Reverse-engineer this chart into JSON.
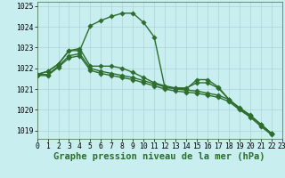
{
  "title": "Graphe pression niveau de la mer (hPa)",
  "background_color": "#c8eef0",
  "grid_color": "#aed4d8",
  "line_color": "#2d6e2d",
  "xlim": [
    0,
    23
  ],
  "ylim": [
    1018.6,
    1025.2
  ],
  "yticks": [
    1019,
    1020,
    1021,
    1022,
    1023,
    1024,
    1025
  ],
  "xticks": [
    0,
    1,
    2,
    3,
    4,
    5,
    6,
    7,
    8,
    9,
    10,
    11,
    12,
    13,
    14,
    15,
    16,
    17,
    18,
    19,
    20,
    21,
    22,
    23
  ],
  "s1_x": [
    0,
    1,
    2,
    3,
    4,
    5,
    6,
    7,
    8,
    9,
    10,
    11,
    12,
    13,
    14,
    15,
    16,
    17,
    18,
    19,
    20,
    21,
    22
  ],
  "s1_y": [
    1021.7,
    1021.85,
    1022.2,
    1022.85,
    1022.85,
    1024.05,
    1024.3,
    1024.5,
    1024.65,
    1024.65,
    1024.2,
    1023.5,
    1021.05,
    1021.05,
    1021.05,
    1021.3,
    1021.3,
    1021.05,
    1020.5,
    1020.05,
    1019.7,
    1019.3,
    1018.85
  ],
  "s2_x": [
    0,
    1,
    2,
    3,
    4,
    5,
    6,
    7,
    8,
    9,
    10,
    11,
    12,
    13,
    14,
    15,
    16,
    17,
    18,
    19,
    20,
    21,
    22
  ],
  "s2_y": [
    1021.7,
    1021.85,
    1022.2,
    1022.85,
    1022.95,
    1022.1,
    1022.1,
    1022.1,
    1022.0,
    1021.8,
    1021.55,
    1021.3,
    1021.15,
    1021.05,
    1021.0,
    1021.45,
    1021.45,
    1021.1,
    1020.5,
    1020.05,
    1019.7,
    1019.3,
    1018.85
  ],
  "s3_x": [
    0,
    1,
    2,
    3,
    4,
    5,
    6,
    7,
    8,
    9,
    10,
    11,
    12,
    13,
    14,
    15,
    16,
    17,
    18,
    19,
    20,
    21,
    22
  ],
  "s3_y": [
    1021.7,
    1021.7,
    1022.1,
    1022.6,
    1022.7,
    1022.0,
    1021.85,
    1021.75,
    1021.65,
    1021.55,
    1021.4,
    1021.25,
    1021.1,
    1021.0,
    1020.95,
    1020.9,
    1020.8,
    1020.7,
    1020.5,
    1020.1,
    1019.75,
    1019.3,
    1018.85
  ],
  "s4_x": [
    0,
    1,
    2,
    3,
    4,
    5,
    6,
    7,
    8,
    9,
    10,
    11,
    12,
    13,
    14,
    15,
    16,
    17,
    18,
    19,
    20,
    21,
    22
  ],
  "s4_y": [
    1021.65,
    1021.65,
    1022.05,
    1022.5,
    1022.6,
    1021.9,
    1021.75,
    1021.65,
    1021.55,
    1021.45,
    1021.3,
    1021.15,
    1021.0,
    1020.9,
    1020.85,
    1020.8,
    1020.7,
    1020.6,
    1020.4,
    1020.0,
    1019.65,
    1019.2,
    1018.8
  ],
  "marker": "D",
  "markersize": 2.8,
  "linewidth": 1.0,
  "title_fontsize": 7.5,
  "tick_fontsize": 5.8
}
